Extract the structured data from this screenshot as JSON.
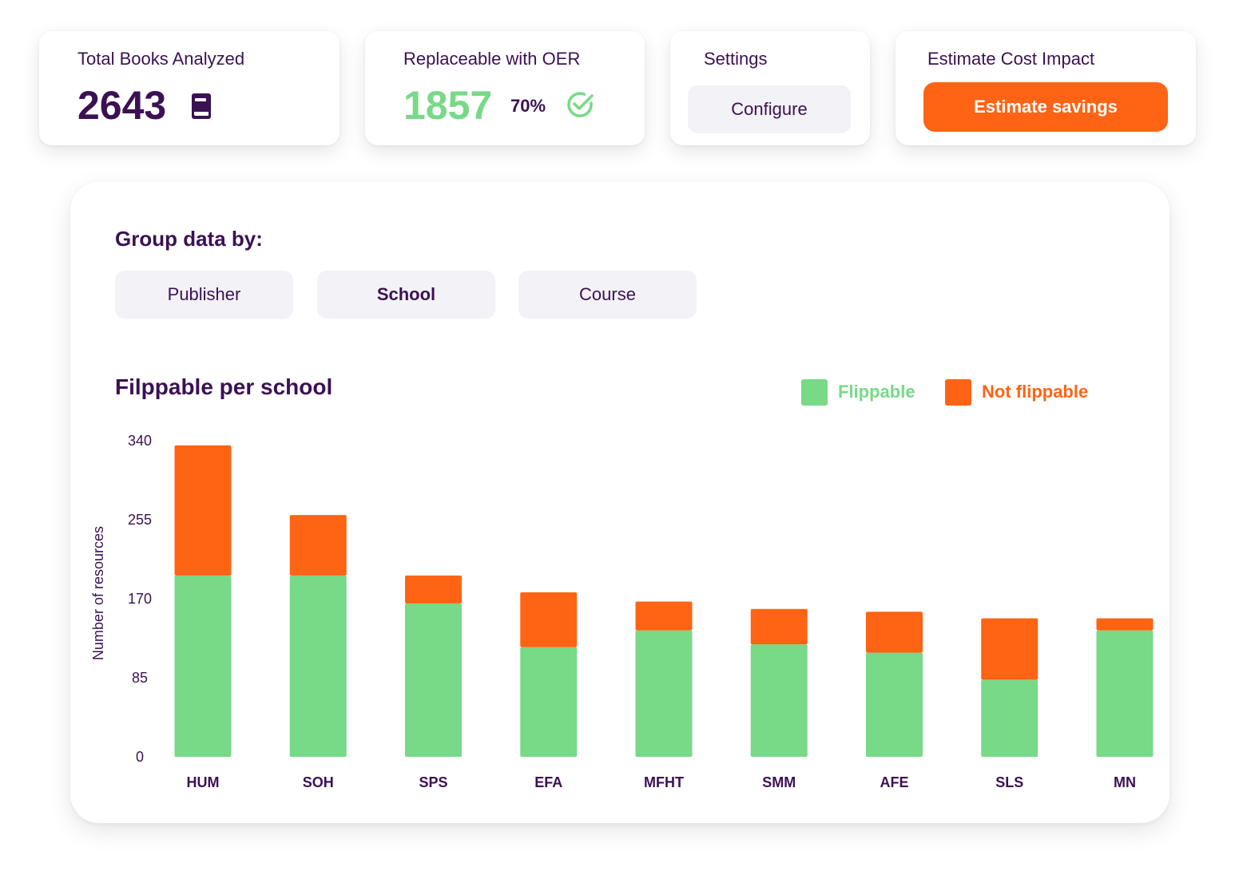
{
  "colors": {
    "brand_purple": "#3b1154",
    "flippable_green": "#78d987",
    "not_flippable_orange": "#ff6314",
    "button_bg": "#f3f2f7"
  },
  "cards": {
    "total_books": {
      "title": "Total Books Analyzed",
      "value": "2643",
      "icon": "book-icon"
    },
    "oer": {
      "title": "Replaceable with OER",
      "value": "1857",
      "percent": "70%",
      "icon": "check-circle-icon"
    },
    "settings": {
      "title": "Settings",
      "button_label": "Configure"
    },
    "estimate": {
      "title": "Estimate Cost Impact",
      "button_label": "Estimate savings"
    }
  },
  "grouping": {
    "label": "Group data by:",
    "options": [
      "Publisher",
      "School",
      "Course"
    ],
    "selected": "School"
  },
  "chart_data": {
    "type": "bar",
    "stacked": true,
    "title": "Filppable per school",
    "xlabel": "",
    "ylabel": "Number of resources",
    "ylim": [
      0,
      340
    ],
    "yticks": [
      0,
      85,
      170,
      255,
      340
    ],
    "categories": [
      "HUM",
      "SOH",
      "SPS",
      "EFA",
      "MFHT",
      "SMM",
      "AFE",
      "SLS",
      "MN"
    ],
    "series": [
      {
        "name": "Flippable",
        "color": "#78d987",
        "values": [
          195,
          195,
          165,
          118,
          136,
          121,
          112,
          83,
          136
        ]
      },
      {
        "name": "Not flippable",
        "color": "#ff6314",
        "values": [
          140,
          65,
          30,
          59,
          31,
          38,
          44,
          66,
          13
        ]
      }
    ],
    "legend_position": "top-right"
  }
}
